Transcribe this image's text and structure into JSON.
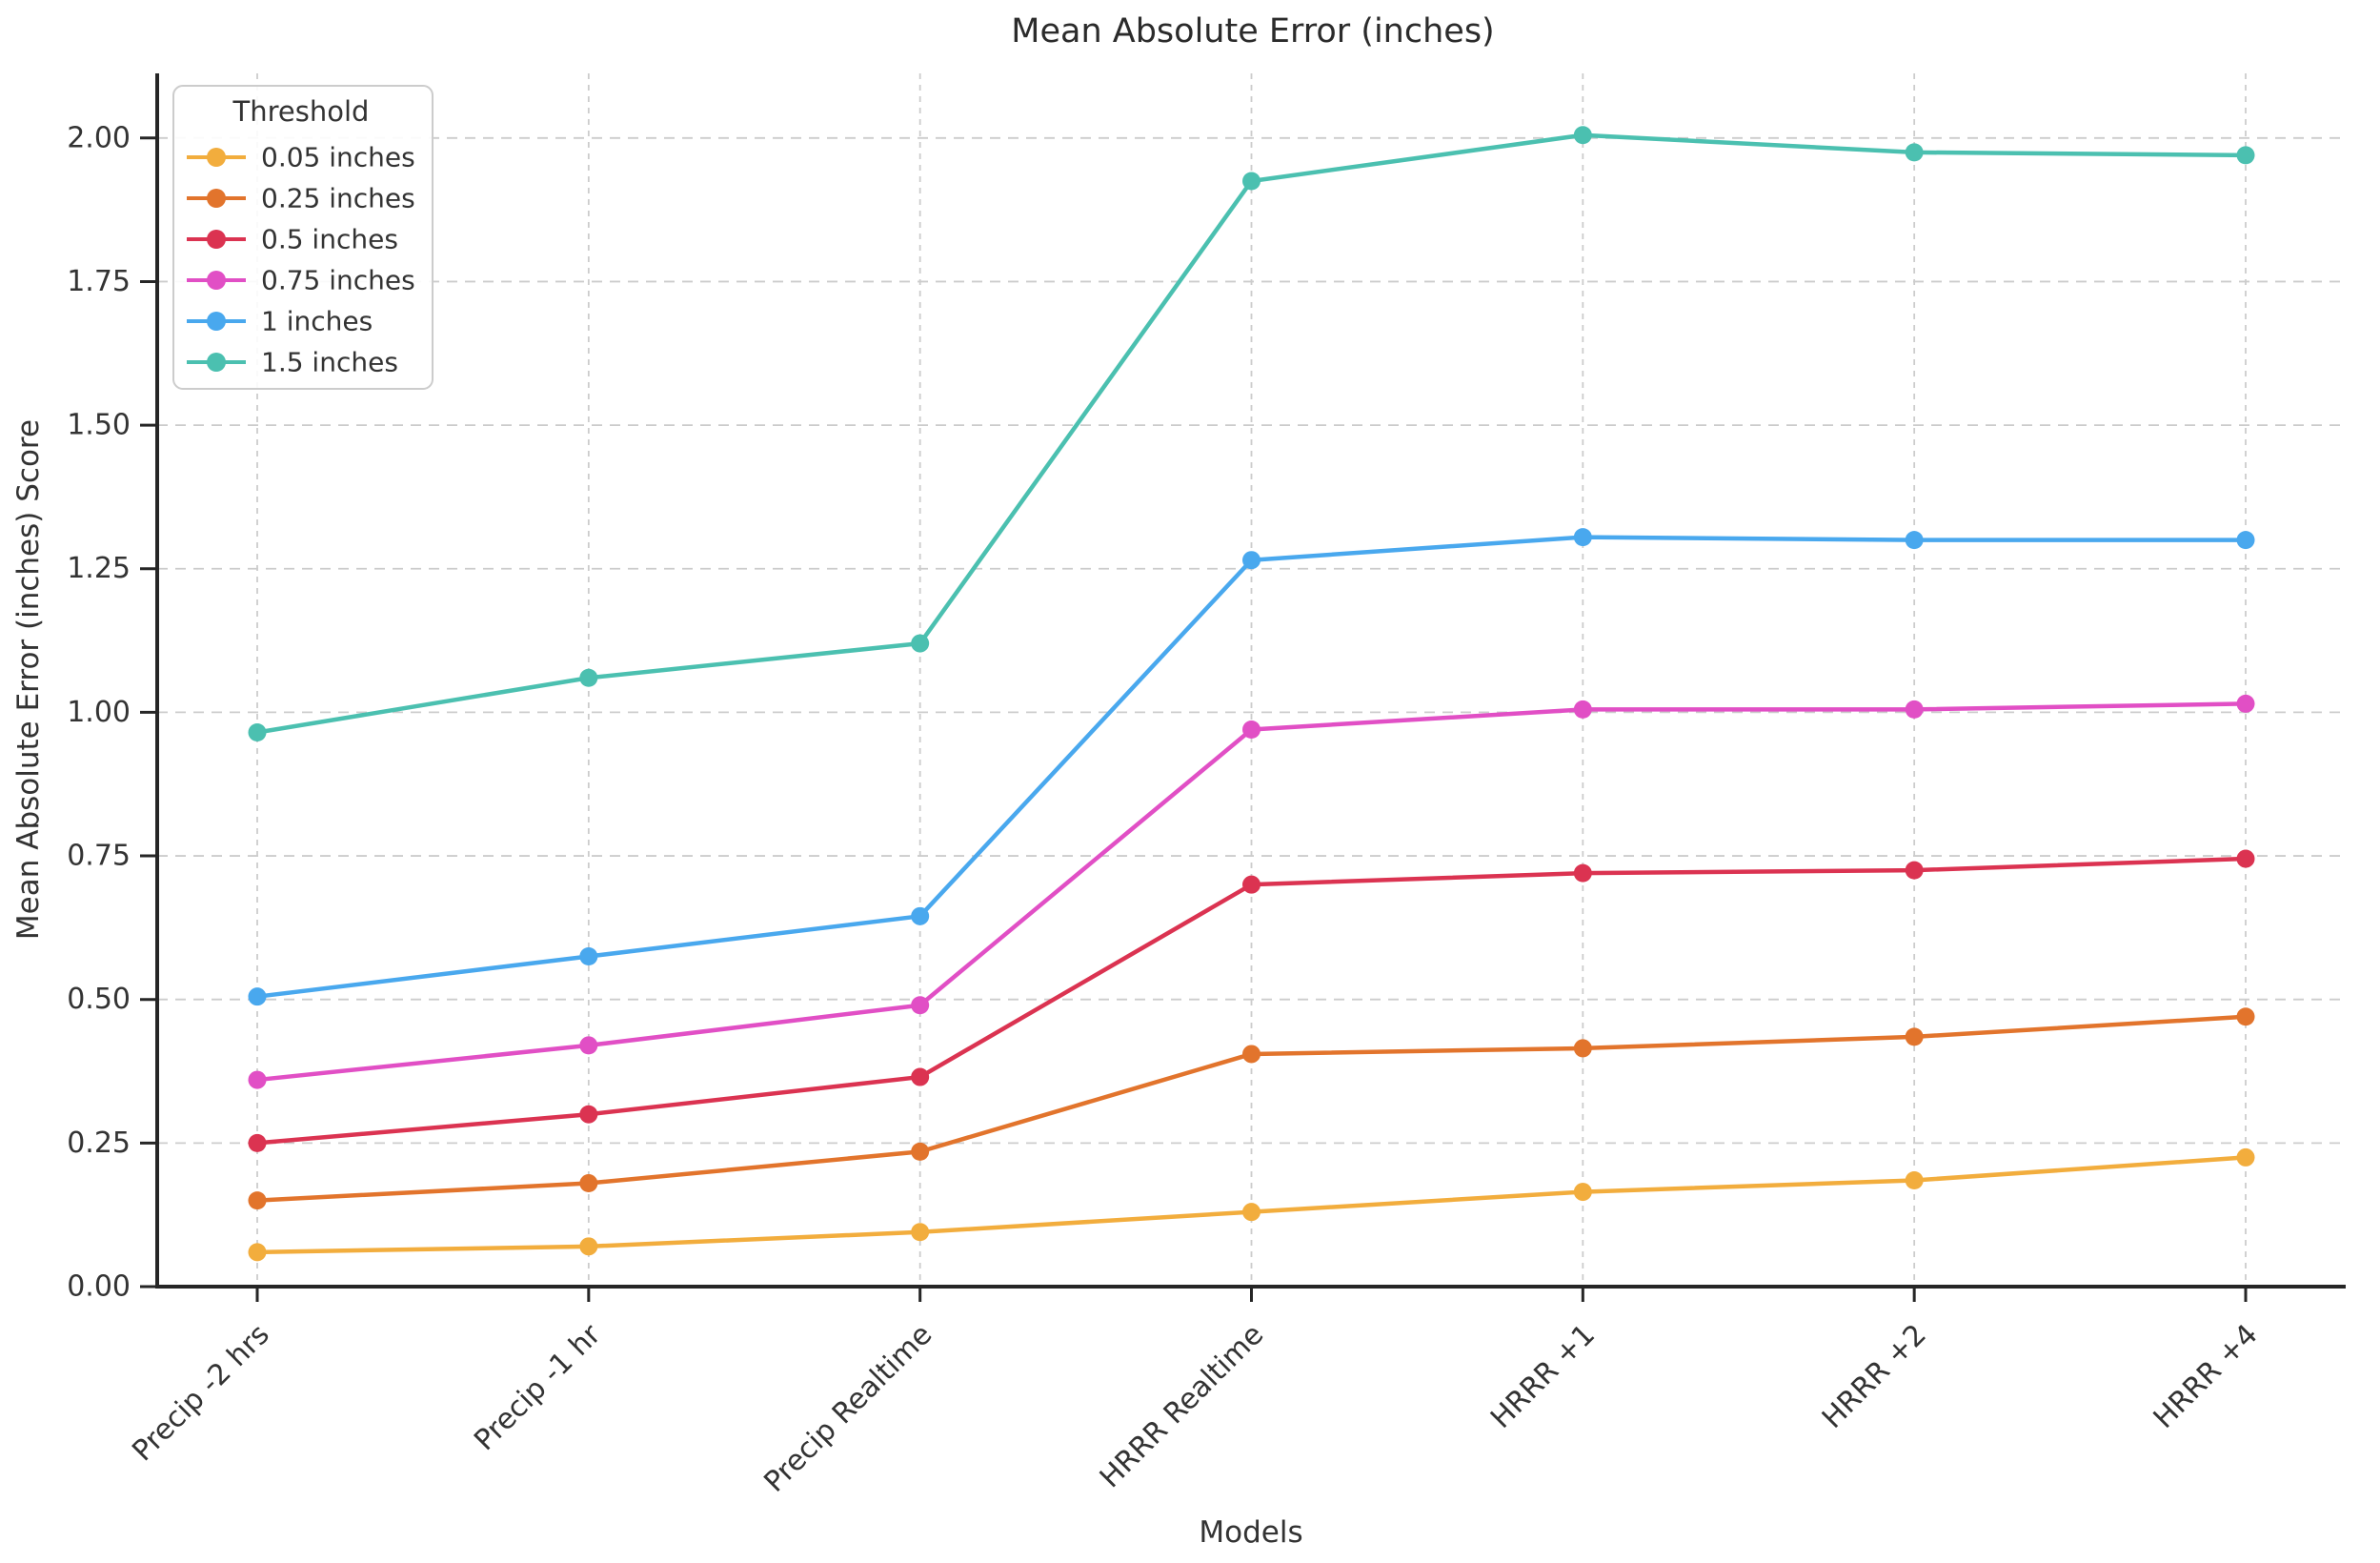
{
  "title": "Mean Absolute Error (inches)",
  "chart_data": {
    "type": "line",
    "title": "Mean Absolute Error (inches)",
    "xlabel": "Models",
    "ylabel": "Mean Absolute Error (inches) Score",
    "legend_title": "Threshold",
    "legend_position": "upper-left",
    "grid": true,
    "categories": [
      "Precip -2 hrs",
      "Precip -1 hr",
      "Precip Realtime",
      "HRRR Realtime",
      "HRRR +1",
      "HRRR +2",
      "HRRR +4"
    ],
    "series": [
      {
        "name": "0.05 inches",
        "color": "#F2AD3D",
        "values": [
          0.06,
          0.07,
          0.095,
          0.13,
          0.165,
          0.185,
          0.225
        ]
      },
      {
        "name": "0.25 inches",
        "color": "#E2742C",
        "values": [
          0.15,
          0.18,
          0.235,
          0.405,
          0.415,
          0.435,
          0.47
        ]
      },
      {
        "name": "0.5 inches",
        "color": "#DB3351",
        "values": [
          0.25,
          0.3,
          0.365,
          0.7,
          0.72,
          0.725,
          0.745
        ]
      },
      {
        "name": "0.75 inches",
        "color": "#E14FC5",
        "values": [
          0.36,
          0.42,
          0.49,
          0.97,
          1.005,
          1.005,
          1.015
        ]
      },
      {
        "name": "1 inches",
        "color": "#49A8EE",
        "values": [
          0.505,
          0.575,
          0.645,
          1.265,
          1.305,
          1.3,
          1.3
        ]
      },
      {
        "name": "1.5 inches",
        "color": "#4BC0B0",
        "values": [
          0.965,
          1.06,
          1.12,
          1.925,
          2.005,
          1.975,
          1.97
        ]
      }
    ],
    "ylim": [
      0,
      2.1125
    ],
    "yticks": [
      0.0,
      0.25,
      0.5,
      0.75,
      1.0,
      1.25,
      1.5,
      1.75,
      2.0
    ],
    "ytick_labels": [
      "0.00",
      "0.25",
      "0.50",
      "0.75",
      "1.00",
      "1.25",
      "1.50",
      "1.75",
      "2.00"
    ],
    "spine_color": "#262626",
    "grid_color": "#cccccc"
  }
}
